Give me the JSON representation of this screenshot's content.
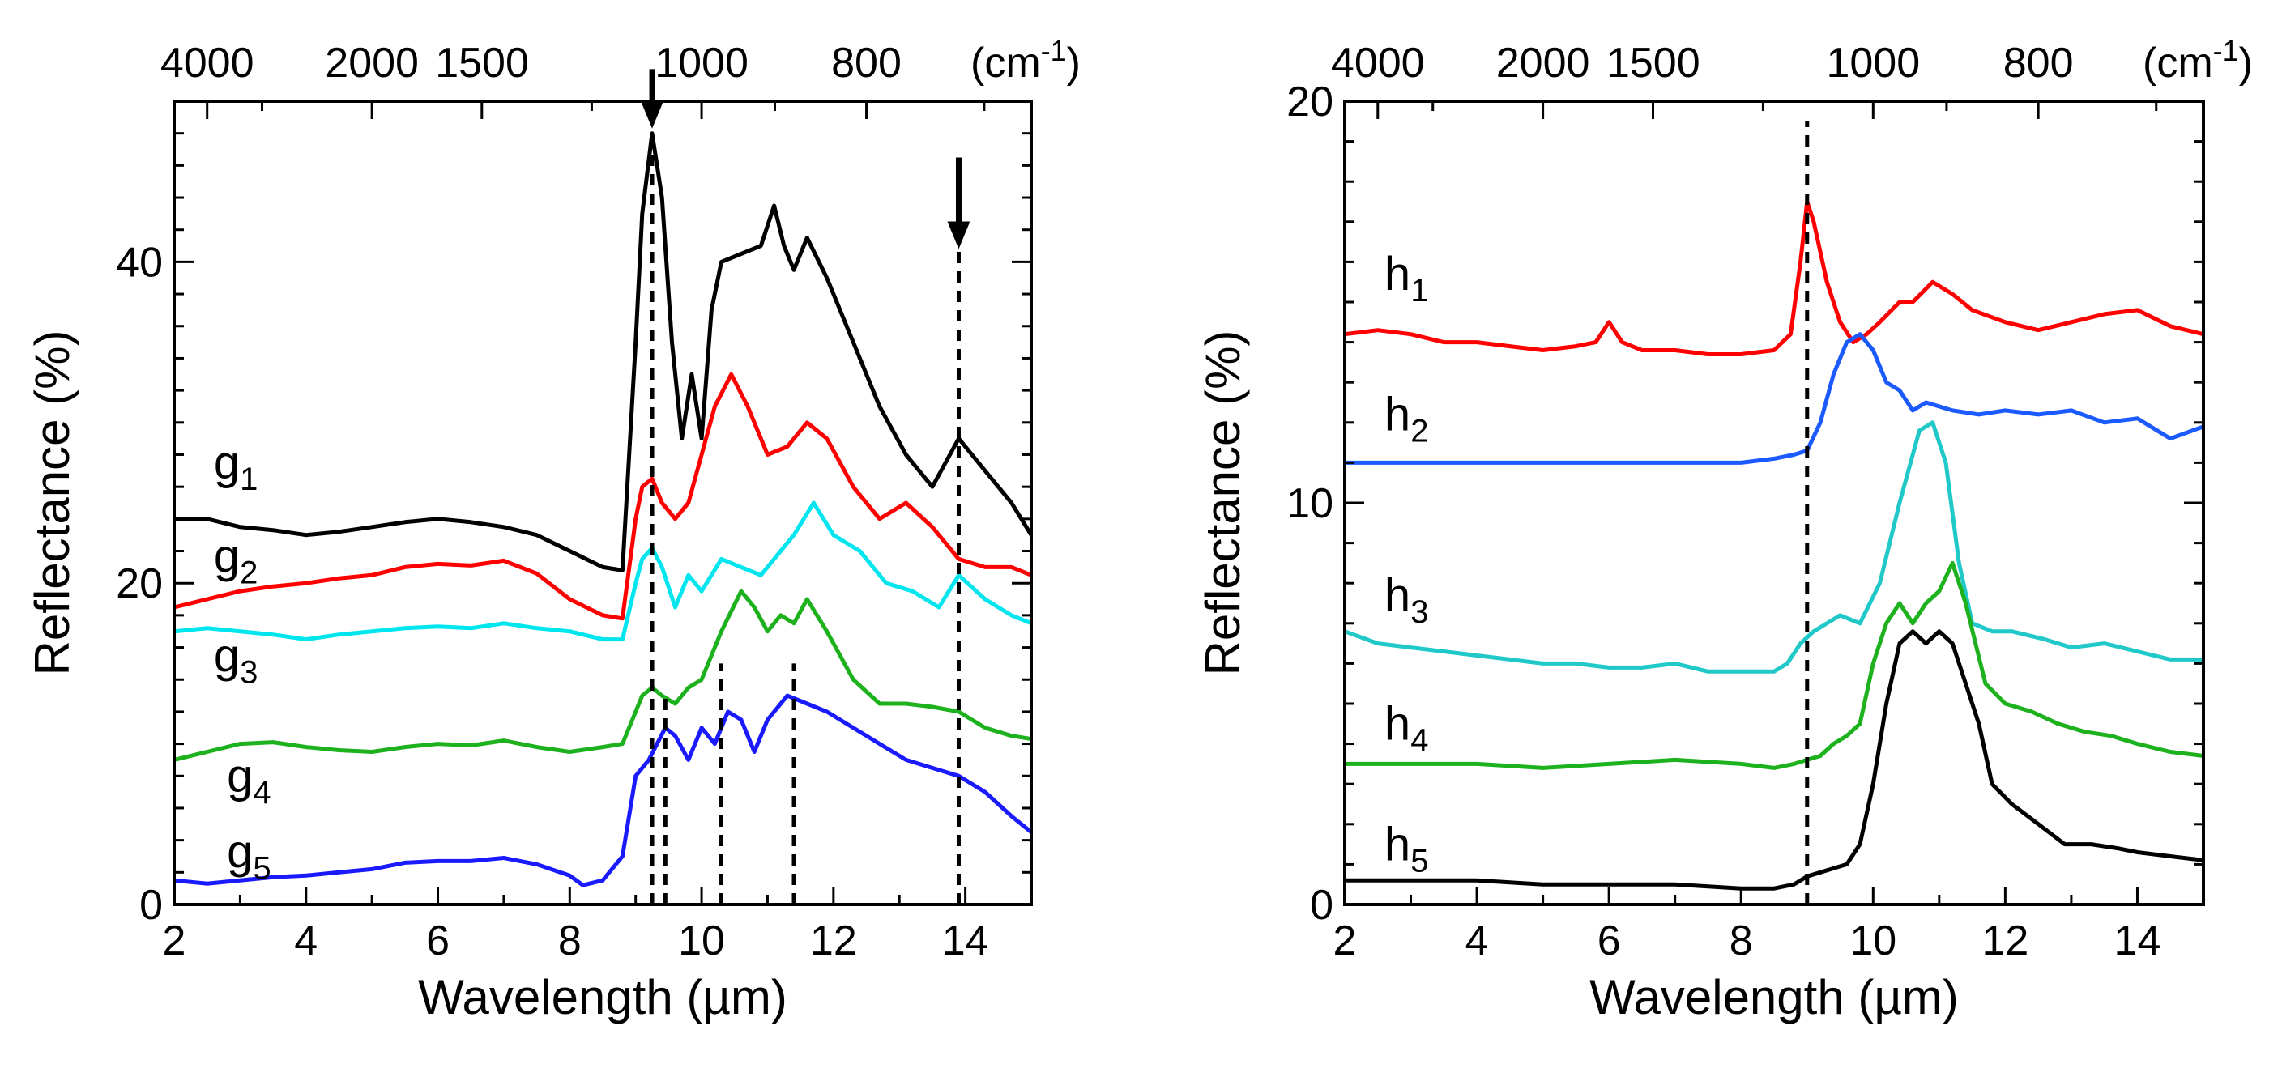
{
  "chart_data": [
    {
      "id": "left",
      "type": "line",
      "xlabel": "Wavelength (µm)",
      "ylabel": "Reflectance (%)",
      "xlim": [
        2,
        15
      ],
      "ylim": [
        0,
        50
      ],
      "x_ticks": [
        2,
        4,
        6,
        8,
        10,
        12,
        14
      ],
      "x_tick_labels": [
        "2",
        "4",
        "6",
        "8",
        "10",
        "12",
        "14"
      ],
      "y_ticks": [
        0,
        20,
        40
      ],
      "y_tick_labels": [
        "0",
        "20",
        "40"
      ],
      "top_axis": {
        "unit": "(cm",
        "unit_sup": "-1",
        "unit_close": ")",
        "ticks": [
          {
            "label": "4000",
            "x": 2.5
          },
          {
            "label": "2000",
            "x": 5.0
          },
          {
            "label": "1500",
            "x": 6.67
          },
          {
            "label": "1000",
            "x": 10.0
          },
          {
            "label": "800",
            "x": 12.5
          }
        ]
      },
      "dashed_lines": [
        {
          "x": 9.25,
          "y0": 0,
          "y1": 48
        },
        {
          "x": 9.45,
          "y0": 0,
          "y1": 13
        },
        {
          "x": 10.3,
          "y0": 0,
          "y1": 15
        },
        {
          "x": 11.4,
          "y0": 0,
          "y1": 15
        },
        {
          "x": 13.9,
          "y0": 0,
          "y1": 41
        }
      ],
      "arrows": [
        {
          "x": 9.25,
          "y_tail": 52,
          "y_head": 48.5
        },
        {
          "x": 13.9,
          "y_tail": 46.5,
          "y_head": 41
        }
      ],
      "series": [
        {
          "name": "g",
          "sub": "1",
          "color": "#000000",
          "label_pos": [
            2.6,
            26.5
          ],
          "x": [
            2,
            2.5,
            3,
            3.5,
            4,
            4.5,
            5,
            5.5,
            6,
            6.5,
            7,
            7.5,
            8,
            8.5,
            8.8,
            9.0,
            9.1,
            9.25,
            9.4,
            9.55,
            9.7,
            9.85,
            10.0,
            10.15,
            10.3,
            10.6,
            10.9,
            11.1,
            11.25,
            11.4,
            11.6,
            11.9,
            12.3,
            12.7,
            13.1,
            13.5,
            13.9,
            14.3,
            14.7,
            15.0
          ],
          "values": [
            24,
            24,
            23.5,
            23.3,
            23,
            23.2,
            23.5,
            23.8,
            24,
            23.8,
            23.5,
            23,
            22,
            21,
            20.8,
            35,
            43,
            48,
            44,
            35,
            29,
            33,
            29,
            37,
            40,
            40.5,
            41,
            43.5,
            41,
            39.5,
            41.5,
            39,
            35,
            31,
            28,
            26,
            29,
            27,
            25,
            23
          ]
        },
        {
          "name": "g",
          "sub": "2",
          "color": "#ff0000",
          "label_pos": [
            2.6,
            20.7
          ],
          "x": [
            2,
            2.5,
            3,
            3.5,
            4,
            4.5,
            5,
            5.5,
            6,
            6.5,
            7,
            7.5,
            8,
            8.5,
            8.8,
            9.0,
            9.1,
            9.25,
            9.4,
            9.6,
            9.8,
            10.0,
            10.2,
            10.45,
            10.7,
            11.0,
            11.3,
            11.6,
            11.9,
            12.3,
            12.7,
            13.1,
            13.5,
            13.9,
            14.3,
            14.7,
            15.0
          ],
          "values": [
            18.5,
            19,
            19.5,
            19.8,
            20,
            20.3,
            20.5,
            21,
            21.2,
            21.1,
            21.4,
            20.6,
            19,
            18,
            17.8,
            24,
            26,
            26.5,
            25,
            24,
            25,
            28,
            31,
            33,
            31,
            28,
            28.5,
            30,
            29,
            26,
            24,
            25,
            23.5,
            21.5,
            21,
            21,
            20.5
          ]
        },
        {
          "name": "g",
          "sub": "3",
          "color": "#00e5ee",
          "label_pos": [
            2.6,
            14.5
          ],
          "x": [
            2,
            2.5,
            3,
            3.5,
            4,
            4.5,
            5,
            5.5,
            6,
            6.5,
            7,
            7.5,
            8,
            8.5,
            8.8,
            9.0,
            9.1,
            9.25,
            9.4,
            9.6,
            9.8,
            10.0,
            10.3,
            10.6,
            10.9,
            11.2,
            11.4,
            11.7,
            12.0,
            12.4,
            12.8,
            13.2,
            13.6,
            13.9,
            14.3,
            14.7,
            15.0
          ],
          "values": [
            17,
            17.2,
            17,
            16.8,
            16.5,
            16.8,
            17,
            17.2,
            17.3,
            17.2,
            17.5,
            17.2,
            17,
            16.5,
            16.5,
            20,
            21.5,
            22.2,
            21,
            18.5,
            20.5,
            19.5,
            21.5,
            21,
            20.5,
            22,
            23,
            25,
            23,
            22,
            20,
            19.5,
            18.5,
            20.5,
            19,
            18,
            17.5
          ]
        },
        {
          "name": "g",
          "sub": "4",
          "color": "#1db11d",
          "label_pos": [
            2.8,
            7.0
          ],
          "x": [
            2,
            2.5,
            3,
            3.5,
            4,
            4.5,
            5,
            5.5,
            6,
            6.5,
            7,
            7.5,
            8,
            8.5,
            8.8,
            9.0,
            9.1,
            9.25,
            9.4,
            9.6,
            9.8,
            10.0,
            10.3,
            10.6,
            10.8,
            11.0,
            11.2,
            11.4,
            11.6,
            11.9,
            12.3,
            12.7,
            13.1,
            13.5,
            13.9,
            14.3,
            14.7,
            15.0
          ],
          "values": [
            9,
            9.5,
            10,
            10.1,
            9.8,
            9.6,
            9.5,
            9.8,
            10,
            9.9,
            10.2,
            9.8,
            9.5,
            9.8,
            10,
            12,
            13,
            13.5,
            13,
            12.5,
            13.5,
            14,
            17,
            19.5,
            18.5,
            17,
            18,
            17.5,
            19,
            17,
            14,
            12.5,
            12.5,
            12.3,
            12,
            11,
            10.5,
            10.3
          ]
        },
        {
          "name": "g",
          "sub": "5",
          "color": "#1a1aff",
          "label_pos": [
            2.8,
            2.3
          ],
          "x": [
            2,
            2.5,
            3,
            3.5,
            4,
            4.5,
            5,
            5.5,
            6,
            6.5,
            7,
            7.5,
            8,
            8.2,
            8.5,
            8.8,
            9.0,
            9.2,
            9.45,
            9.6,
            9.8,
            10.0,
            10.2,
            10.4,
            10.6,
            10.8,
            11.0,
            11.3,
            11.6,
            11.9,
            12.3,
            12.7,
            13.1,
            13.5,
            13.9,
            14.3,
            14.7,
            15.0
          ],
          "values": [
            1.5,
            1.3,
            1.5,
            1.7,
            1.8,
            2,
            2.2,
            2.6,
            2.7,
            2.7,
            2.9,
            2.5,
            1.8,
            1.2,
            1.5,
            3,
            8,
            9,
            11,
            10.5,
            9,
            11,
            10,
            12,
            11.5,
            9.5,
            11.5,
            13,
            12.5,
            12,
            11,
            10,
            9,
            8.5,
            8,
            7,
            5.5,
            4.5
          ]
        }
      ]
    },
    {
      "id": "right",
      "type": "line",
      "xlabel": "Wavelength (µm)",
      "ylabel": "Reflectance (%)",
      "xlim": [
        2,
        15
      ],
      "ylim": [
        0,
        20
      ],
      "x_ticks": [
        2,
        4,
        6,
        8,
        10,
        12,
        14
      ],
      "x_tick_labels": [
        "2",
        "4",
        "6",
        "8",
        "10",
        "12",
        "14"
      ],
      "y_ticks": [
        0,
        10,
        20
      ],
      "y_tick_labels": [
        "0",
        "10",
        "20"
      ],
      "top_axis": {
        "unit": "(cm",
        "unit_sup": "-1",
        "unit_close": ")",
        "ticks": [
          {
            "label": "4000",
            "x": 2.5
          },
          {
            "label": "2000",
            "x": 5.0
          },
          {
            "label": "1500",
            "x": 6.67
          },
          {
            "label": "1000",
            "x": 10.0
          },
          {
            "label": "800",
            "x": 12.5
          }
        ]
      },
      "dashed_lines": [
        {
          "x": 9.0,
          "y0": 0,
          "y1": 19.5
        }
      ],
      "arrows": [],
      "series": [
        {
          "name": "h",
          "sub": "1",
          "color": "#ff0000",
          "label_pos": [
            2.6,
            15.3
          ],
          "x": [
            2,
            2.5,
            3,
            3.5,
            4,
            4.5,
            5,
            5.5,
            5.8,
            6.0,
            6.2,
            6.5,
            7,
            7.5,
            8,
            8.5,
            8.75,
            8.9,
            9.0,
            9.1,
            9.3,
            9.5,
            9.7,
            9.9,
            10.1,
            10.4,
            10.6,
            10.9,
            11.2,
            11.5,
            12,
            12.5,
            13,
            13.5,
            14,
            14.5,
            15.0
          ],
          "values": [
            14.2,
            14.3,
            14.2,
            14,
            14,
            13.9,
            13.8,
            13.9,
            14,
            14.5,
            14,
            13.8,
            13.8,
            13.7,
            13.7,
            13.8,
            14.2,
            16,
            17.5,
            17,
            15.5,
            14.5,
            14,
            14.2,
            14.5,
            15,
            15,
            15.5,
            15.2,
            14.8,
            14.5,
            14.3,
            14.5,
            14.7,
            14.8,
            14.4,
            14.2
          ]
        },
        {
          "name": "h",
          "sub": "2",
          "color": "#1a5aff",
          "label_pos": [
            2.6,
            11.8
          ],
          "x": [
            2,
            3,
            4,
            5,
            6,
            7,
            8,
            8.5,
            8.8,
            9.0,
            9.2,
            9.4,
            9.6,
            9.8,
            10.0,
            10.2,
            10.4,
            10.6,
            10.8,
            11.2,
            11.6,
            12,
            12.5,
            13,
            13.5,
            14,
            14.5,
            15.0
          ],
          "values": [
            11,
            11,
            11,
            11,
            11,
            11,
            11,
            11.1,
            11.2,
            11.3,
            12,
            13.2,
            14,
            14.2,
            13.8,
            13,
            12.8,
            12.3,
            12.5,
            12.3,
            12.2,
            12.3,
            12.2,
            12.3,
            12,
            12.1,
            11.6,
            11.9
          ]
        },
        {
          "name": "h",
          "sub": "3",
          "color": "#20c8c8",
          "label_pos": [
            2.6,
            7.3
          ],
          "x": [
            2,
            2.5,
            3,
            3.5,
            4,
            4.5,
            5,
            5.5,
            6,
            6.5,
            7,
            7.5,
            8,
            8.5,
            8.7,
            8.9,
            9.1,
            9.3,
            9.5,
            9.8,
            10.1,
            10.4,
            10.7,
            10.9,
            11.1,
            11.3,
            11.5,
            11.8,
            12.1,
            12.6,
            13,
            13.5,
            14,
            14.5,
            15.0
          ],
          "values": [
            6.8,
            6.5,
            6.4,
            6.3,
            6.2,
            6.1,
            6.0,
            6.0,
            5.9,
            5.9,
            6.0,
            5.8,
            5.8,
            5.8,
            6.0,
            6.5,
            6.8,
            7,
            7.2,
            7,
            8,
            10,
            11.8,
            12,
            11,
            8.5,
            7,
            6.8,
            6.8,
            6.6,
            6.4,
            6.5,
            6.3,
            6.1,
            6.1
          ]
        },
        {
          "name": "h",
          "sub": "4",
          "color": "#1db11d",
          "label_pos": [
            2.6,
            4.1
          ],
          "x": [
            2,
            3,
            4,
            5,
            6,
            7,
            8,
            8.5,
            8.8,
            9.0,
            9.2,
            9.4,
            9.6,
            9.8,
            10.0,
            10.2,
            10.4,
            10.6,
            10.8,
            11.0,
            11.2,
            11.4,
            11.7,
            12,
            12.4,
            12.8,
            13.2,
            13.6,
            14,
            14.5,
            15.0
          ],
          "values": [
            3.5,
            3.5,
            3.5,
            3.4,
            3.5,
            3.6,
            3.5,
            3.4,
            3.5,
            3.6,
            3.7,
            4,
            4.2,
            4.5,
            6,
            7,
            7.5,
            7,
            7.5,
            7.8,
            8.5,
            7.5,
            5.5,
            5,
            4.8,
            4.5,
            4.3,
            4.2,
            4,
            3.8,
            3.7
          ]
        },
        {
          "name": "h",
          "sub": "5",
          "color": "#000000",
          "label_pos": [
            2.6,
            1.1
          ],
          "x": [
            2,
            3,
            4,
            5,
            6,
            7,
            8,
            8.5,
            8.8,
            9.0,
            9.2,
            9.4,
            9.6,
            9.8,
            10.0,
            10.2,
            10.4,
            10.6,
            10.8,
            11.0,
            11.2,
            11.4,
            11.6,
            11.8,
            12.1,
            12.5,
            12.9,
            13.3,
            13.7,
            14,
            14.5,
            15.0
          ],
          "values": [
            0.6,
            0.6,
            0.6,
            0.5,
            0.5,
            0.5,
            0.4,
            0.4,
            0.5,
            0.7,
            0.8,
            0.9,
            1,
            1.5,
            3,
            5,
            6.5,
            6.8,
            6.5,
            6.8,
            6.5,
            5.5,
            4.5,
            3,
            2.5,
            2.0,
            1.5,
            1.5,
            1.4,
            1.3,
            1.2,
            1.1
          ]
        }
      ]
    }
  ]
}
